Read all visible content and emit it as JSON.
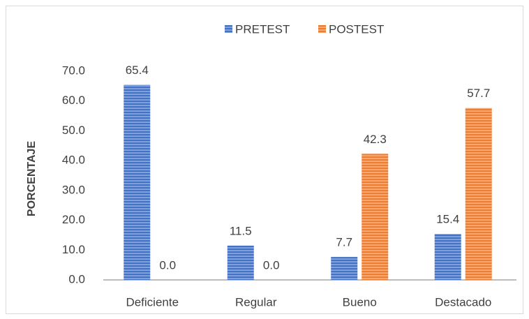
{
  "chart_data": {
    "type": "bar",
    "y_label": "PORCENTAJE",
    "categories": [
      "Deficiente",
      "Regular",
      "Bueno",
      "Destacado"
    ],
    "series": [
      {
        "name": "PRETEST",
        "color": "#4472c4",
        "values": [
          65.4,
          11.5,
          7.7,
          15.4
        ],
        "value_labels": [
          "65.4",
          "11.5",
          "7.7",
          "15.4"
        ]
      },
      {
        "name": "POSTEST",
        "color": "#ed7d31",
        "values": [
          0,
          0,
          42.3,
          57.7
        ],
        "value_labels": [
          "0.0",
          "0.0",
          "42.3",
          "57.7"
        ]
      }
    ],
    "ylim": [
      0,
      70
    ],
    "yticks": [
      {
        "value": 0,
        "label": "0.0"
      },
      {
        "value": 10,
        "label": "10.0"
      },
      {
        "value": 20,
        "label": "20.0"
      },
      {
        "value": 30,
        "label": "30.0"
      },
      {
        "value": 40,
        "label": "40.0"
      },
      {
        "value": 50,
        "label": "50.0"
      },
      {
        "value": 60,
        "label": "60.0"
      },
      {
        "value": 70,
        "label": "70.0"
      }
    ],
    "grid": false,
    "legend": "top"
  }
}
